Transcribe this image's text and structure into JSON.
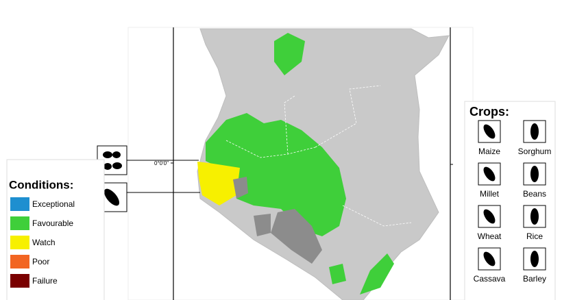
{
  "conditions": {
    "title": "Conditions:",
    "items": [
      {
        "label": "Exceptional",
        "color": "#1e8fd0"
      },
      {
        "label": "Favourable",
        "color": "#3fcf3a"
      },
      {
        "label": "Watch",
        "color": "#f7f000"
      },
      {
        "label": "Poor",
        "color": "#f26522"
      },
      {
        "label": "Failure",
        "color": "#7a0000"
      }
    ]
  },
  "crops": {
    "title": "Crops:",
    "items": [
      "Maize",
      "Sorghum",
      "Millet",
      "Beans",
      "Wheat",
      "Rice",
      "Cassava",
      "Barley"
    ]
  },
  "map": {
    "latitude_label": "0°0'0\""
  }
}
